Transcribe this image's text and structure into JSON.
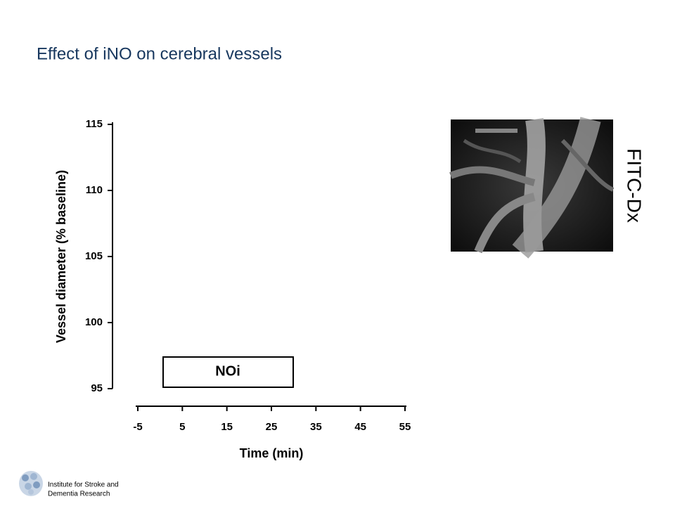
{
  "slide": {
    "title": "Effect of iNO on cerebral vessels",
    "image_label": "FITC-Dx",
    "footer": [
      "Institute for Stroke and",
      "Dementia Research"
    ]
  },
  "chart_data": {
    "type": "line",
    "x_label": "Time (min)",
    "y_label": "Vessel diameter (% baseline)",
    "xlim": [
      -5,
      55
    ],
    "xticks": [
      -5,
      5,
      15,
      25,
      35,
      45,
      55
    ],
    "ylim": [
      95,
      115
    ],
    "yticks": [
      95,
      100,
      105,
      110,
      115
    ],
    "annotation": "NOi"
  }
}
